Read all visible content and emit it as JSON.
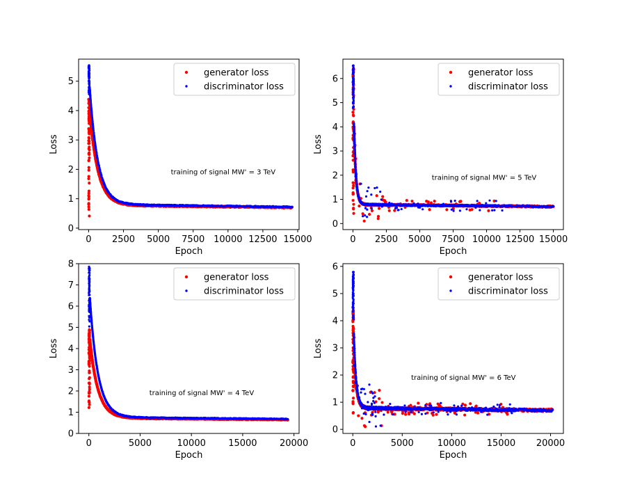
{
  "chart_data": [
    {
      "type": "scatter",
      "xlabel": "Epoch",
      "ylabel": "Loss",
      "xlim": [
        -720,
        15100
      ],
      "ylim": [
        -0.05,
        5.75
      ],
      "xticks": [
        0,
        2500,
        5000,
        7500,
        10000,
        12500,
        15000
      ],
      "xtick_labels": [
        "0",
        "2500",
        "5000",
        "7500",
        "10000",
        "12500",
        "15000"
      ],
      "yticks": [
        0,
        1,
        2,
        3,
        4,
        5
      ],
      "ytick_labels": [
        "0",
        "1",
        "2",
        "3",
        "4",
        "5"
      ],
      "annotation": {
        "text": "training of signal MW' = 3 TeV",
        "x": 5900,
        "y": 1.9
      },
      "legend": {
        "placement": "upper right",
        "entries": [
          "generator loss",
          "discriminator loss"
        ]
      },
      "x_max": 14600,
      "series": [
        {
          "name": "generator loss",
          "color": "#ff0000",
          "peak": 4.4,
          "burnin": [
            0.2,
            4.4
          ],
          "start_y": 4.3,
          "end_y": 0.7,
          "scale": 600,
          "noise": 0.02,
          "outliers": 0
        },
        {
          "name": "discriminator loss",
          "color": "#0000ff",
          "peak": 5.55,
          "burnin": [
            4.5,
            5.55
          ],
          "start_y": 5.2,
          "end_y": 0.72,
          "scale": 600,
          "noise": 0.02,
          "outliers": 0
        }
      ]
    },
    {
      "type": "scatter",
      "xlabel": "Epoch",
      "ylabel": "Loss",
      "xlim": [
        -750,
        15750
      ],
      "ylim": [
        -0.25,
        6.8
      ],
      "xticks": [
        0,
        2500,
        5000,
        7500,
        10000,
        12500,
        15000
      ],
      "xtick_labels": [
        "0",
        "2500",
        "5000",
        "7500",
        "10000",
        "12500",
        "15000"
      ],
      "yticks": [
        0,
        1,
        2,
        3,
        4,
        5,
        6
      ],
      "ytick_labels": [
        "0",
        "1",
        "2",
        "3",
        "4",
        "5",
        "6"
      ],
      "annotation": {
        "text": "training of signal MW' = 5 TeV",
        "x": 5900,
        "y": 1.9
      },
      "legend": {
        "placement": "upper right",
        "entries": [
          "generator loss",
          "discriminator loss"
        ]
      },
      "x_max": 15000,
      "series": [
        {
          "name": "generator loss",
          "color": "#ff0000",
          "peak": 6.5,
          "burnin": [
            0.2,
            6.5
          ],
          "start_y": 6.0,
          "end_y": 0.7,
          "scale": 150,
          "noise": 0.03,
          "outliers": 60
        },
        {
          "name": "discriminator loss",
          "color": "#0000ff",
          "peak": 6.55,
          "burnin": [
            4.5,
            6.55
          ],
          "start_y": 6.2,
          "end_y": 0.7,
          "scale": 150,
          "noise": 0.03,
          "outliers": 60
        }
      ]
    },
    {
      "type": "scatter",
      "xlabel": "Epoch",
      "ylabel": "Loss",
      "xlim": [
        -1000,
        20500
      ],
      "ylim": [
        0,
        8
      ],
      "xticks": [
        0,
        5000,
        10000,
        15000,
        20000
      ],
      "xtick_labels": [
        "0",
        "5000",
        "10000",
        "15000",
        "20000"
      ],
      "yticks": [
        0,
        1,
        2,
        3,
        4,
        5,
        6,
        7,
        8
      ],
      "ytick_labels": [
        "0",
        "1",
        "2",
        "3",
        "4",
        "5",
        "6",
        "7",
        "8"
      ],
      "annotation": {
        "text": "training of signal MW' = 4 TeV",
        "x": 5900,
        "y": 1.9
      },
      "legend": {
        "placement": "upper right",
        "entries": [
          "generator loss",
          "discriminator loss"
        ]
      },
      "x_max": 19400,
      "series": [
        {
          "name": "generator loss",
          "color": "#ff0000",
          "peak": 4.9,
          "burnin": [
            0.75,
            4.9
          ],
          "start_y": 4.8,
          "end_y": 0.65,
          "scale": 800,
          "noise": 0.02,
          "outliers": 0
        },
        {
          "name": "discriminator loss",
          "color": "#0000ff",
          "peak": 7.9,
          "burnin": [
            5.0,
            7.9
          ],
          "start_y": 7.0,
          "end_y": 0.68,
          "scale": 800,
          "noise": 0.02,
          "outliers": 0
        }
      ]
    },
    {
      "type": "scatter",
      "xlabel": "Epoch",
      "ylabel": "Loss",
      "xlim": [
        -1000,
        21300
      ],
      "ylim": [
        -0.15,
        6.1
      ],
      "xticks": [
        0,
        5000,
        10000,
        15000,
        20000
      ],
      "xtick_labels": [
        "0",
        "5000",
        "10000",
        "15000",
        "20000"
      ],
      "yticks": [
        0,
        1,
        2,
        3,
        4,
        5,
        6
      ],
      "ytick_labels": [
        "0",
        "1",
        "2",
        "3",
        "4",
        "5",
        "6"
      ],
      "annotation": {
        "text": "training of signal MW' = 6 TeV",
        "x": 5900,
        "y": 1.9
      },
      "legend": {
        "placement": "upper right",
        "entries": [
          "generator loss",
          "discriminator loss"
        ]
      },
      "x_max": 20200,
      "series": [
        {
          "name": "generator loss",
          "color": "#ff0000",
          "peak": 4.5,
          "burnin": [
            0.2,
            4.5
          ],
          "start_y": 4.0,
          "end_y": 0.7,
          "scale": 250,
          "noise": 0.05,
          "outliers": 90
        },
        {
          "name": "discriminator loss",
          "color": "#0000ff",
          "peak": 5.8,
          "burnin": [
            4.0,
            5.8
          ],
          "start_y": 4.8,
          "end_y": 0.7,
          "scale": 250,
          "noise": 0.05,
          "outliers": 90
        }
      ]
    }
  ]
}
